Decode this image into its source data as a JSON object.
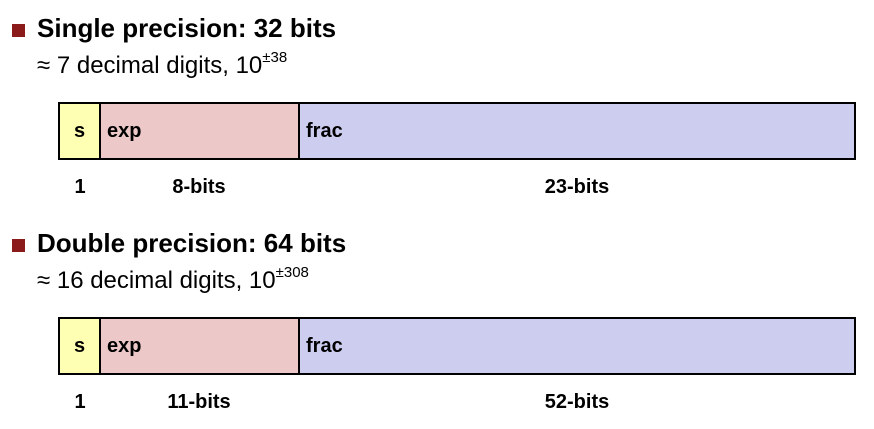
{
  "single": {
    "heading": "Single precision: 32 bits",
    "subline_text": "≈ 7 decimal digits, 10",
    "subline_exponent": "±38",
    "fields": {
      "s": "s",
      "exp": "exp",
      "frac": "frac"
    },
    "sizes": {
      "s": "1",
      "exp": "8-bits",
      "frac": "23-bits"
    }
  },
  "double": {
    "heading": "Double precision: 64 bits",
    "subline_text": "≈ 16 decimal digits, 10",
    "subline_exponent": "±308",
    "fields": {
      "s": "s",
      "exp": "exp",
      "frac": "frac"
    },
    "sizes": {
      "s": "1",
      "exp": "11-bits",
      "frac": "52-bits"
    }
  },
  "colors": {
    "bullet": "#8b1a1a",
    "sign_field": "#ffffb4",
    "exp_field": "#ecc8c8",
    "frac_field": "#cdcdf0"
  }
}
